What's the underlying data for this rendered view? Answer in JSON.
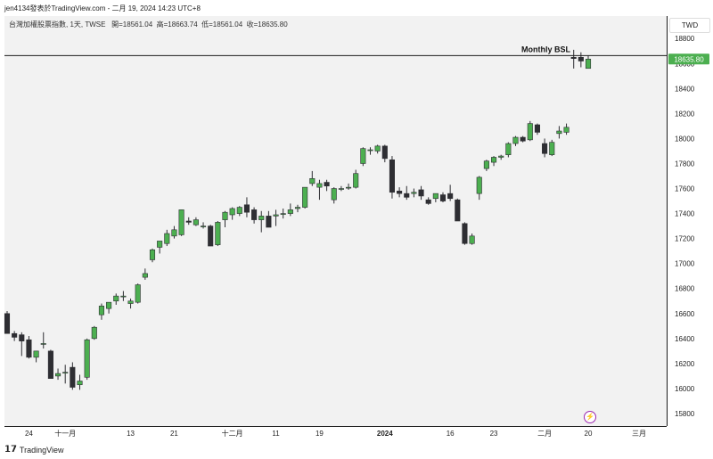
{
  "header": {
    "title": "jen4134發表於TradingView.com - 二月 19, 2024 14:23 UTC+8"
  },
  "ohlc": {
    "symbol_text": "台灣加權股票指數, 1天, TWSE",
    "open_label": "開=",
    "open": "18561.04",
    "high_label": "高=",
    "high": "18663.74",
    "low_label": "低=",
    "low": "18561.04",
    "close_label": "收=",
    "close": "18635.80"
  },
  "currency": "TWD",
  "footer": {
    "logo_icon": "tradingview-logo-icon",
    "brand": "TradingView"
  },
  "annotation": {
    "label": "Monthly BSL",
    "price": 18664
  },
  "last_price_label": "18635.80",
  "colors": {
    "up": "#4caf50",
    "down": "#2e2e33",
    "line": "#1c1c1c",
    "last_price_bg": "#4caf50",
    "shadow_grey": "#c8c8c8"
  },
  "chart_data": {
    "type": "candlestick",
    "ylim": [
      15700,
      18980
    ],
    "yticks": [
      15800,
      16000,
      16200,
      16400,
      16600,
      16800,
      17000,
      17200,
      17400,
      17600,
      17800,
      18000,
      18200,
      18400,
      18600,
      18800
    ],
    "x_tick_labels": [
      {
        "label": "24",
        "index": 3
      },
      {
        "label": "十一月",
        "index": 8
      },
      {
        "label": "13",
        "index": 17
      },
      {
        "label": "21",
        "index": 23
      },
      {
        "label": "十二月",
        "index": 31
      },
      {
        "label": "11",
        "index": 37
      },
      {
        "label": "19",
        "index": 43
      },
      {
        "label": "2024",
        "index": 52
      },
      {
        "label": "16",
        "index": 61
      },
      {
        "label": "23",
        "index": 67
      },
      {
        "label": "二月",
        "index": 74
      },
      {
        "label": "20",
        "index": 80
      },
      {
        "label": "三月",
        "index": 87
      }
    ],
    "candles": [
      {
        "o": 16600,
        "h": 16620,
        "l": 16440,
        "c": 16440
      },
      {
        "o": 16440,
        "h": 16460,
        "l": 16380,
        "c": 16410
      },
      {
        "o": 16430,
        "h": 16450,
        "l": 16260,
        "c": 16380
      },
      {
        "o": 16390,
        "h": 16420,
        "l": 16240,
        "c": 16250
      },
      {
        "o": 16250,
        "h": 16300,
        "l": 16210,
        "c": 16300
      },
      {
        "o": 16360,
        "h": 16450,
        "l": 16320,
        "c": 16360
      },
      {
        "o": 16300,
        "h": 16310,
        "l": 16080,
        "c": 16080
      },
      {
        "o": 16100,
        "h": 16160,
        "l": 16070,
        "c": 16120
      },
      {
        "o": 16130,
        "h": 16190,
        "l": 16040,
        "c": 16130
      },
      {
        "o": 16170,
        "h": 16210,
        "l": 15990,
        "c": 16010
      },
      {
        "o": 16030,
        "h": 16110,
        "l": 15990,
        "c": 16060
      },
      {
        "o": 16090,
        "h": 16400,
        "l": 16070,
        "c": 16390
      },
      {
        "o": 16400,
        "h": 16500,
        "l": 16390,
        "c": 16490
      },
      {
        "o": 16590,
        "h": 16680,
        "l": 16550,
        "c": 16660
      },
      {
        "o": 16640,
        "h": 16690,
        "l": 16600,
        "c": 16690
      },
      {
        "o": 16700,
        "h": 16760,
        "l": 16670,
        "c": 16740
      },
      {
        "o": 16740,
        "h": 16780,
        "l": 16700,
        "c": 16740
      },
      {
        "o": 16680,
        "h": 16720,
        "l": 16640,
        "c": 16700
      },
      {
        "o": 16690,
        "h": 16840,
        "l": 16680,
        "c": 16830
      },
      {
        "o": 16890,
        "h": 16960,
        "l": 16870,
        "c": 16920
      },
      {
        "o": 17030,
        "h": 17120,
        "l": 17010,
        "c": 17110
      },
      {
        "o": 17130,
        "h": 17180,
        "l": 17080,
        "c": 17180
      },
      {
        "o": 17160,
        "h": 17270,
        "l": 17140,
        "c": 17240
      },
      {
        "o": 17220,
        "h": 17300,
        "l": 17200,
        "c": 17270
      },
      {
        "o": 17230,
        "h": 17430,
        "l": 17220,
        "c": 17430
      },
      {
        "o": 17340,
        "h": 17370,
        "l": 17310,
        "c": 17330
      },
      {
        "o": 17310,
        "h": 17370,
        "l": 17300,
        "c": 17350
      },
      {
        "o": 17300,
        "h": 17330,
        "l": 17280,
        "c": 17300
      },
      {
        "o": 17300,
        "h": 17310,
        "l": 17140,
        "c": 17140
      },
      {
        "o": 17150,
        "h": 17340,
        "l": 17140,
        "c": 17330
      },
      {
        "o": 17350,
        "h": 17420,
        "l": 17290,
        "c": 17410
      },
      {
        "o": 17390,
        "h": 17450,
        "l": 17350,
        "c": 17440
      },
      {
        "o": 17400,
        "h": 17460,
        "l": 17380,
        "c": 17450
      },
      {
        "o": 17470,
        "h": 17530,
        "l": 17370,
        "c": 17410
      },
      {
        "o": 17430,
        "h": 17450,
        "l": 17320,
        "c": 17350
      },
      {
        "o": 17350,
        "h": 17420,
        "l": 17250,
        "c": 17380
      },
      {
        "o": 17380,
        "h": 17420,
        "l": 17300,
        "c": 17290
      },
      {
        "o": 17380,
        "h": 17430,
        "l": 17300,
        "c": 17390
      },
      {
        "o": 17400,
        "h": 17440,
        "l": 17360,
        "c": 17400
      },
      {
        "o": 17400,
        "h": 17480,
        "l": 17380,
        "c": 17430
      },
      {
        "o": 17440,
        "h": 17470,
        "l": 17410,
        "c": 17450
      },
      {
        "o": 17450,
        "h": 17610,
        "l": 17440,
        "c": 17610
      },
      {
        "o": 17640,
        "h": 17740,
        "l": 17620,
        "c": 17680
      },
      {
        "o": 17610,
        "h": 17670,
        "l": 17510,
        "c": 17640
      },
      {
        "o": 17650,
        "h": 17670,
        "l": 17580,
        "c": 17620
      },
      {
        "o": 17510,
        "h": 17610,
        "l": 17480,
        "c": 17600
      },
      {
        "o": 17600,
        "h": 17620,
        "l": 17580,
        "c": 17600
      },
      {
        "o": 17610,
        "h": 17640,
        "l": 17590,
        "c": 17610
      },
      {
        "o": 17610,
        "h": 17750,
        "l": 17600,
        "c": 17720
      },
      {
        "o": 17800,
        "h": 17930,
        "l": 17780,
        "c": 17920
      },
      {
        "o": 17910,
        "h": 17930,
        "l": 17870,
        "c": 17910
      },
      {
        "o": 17900,
        "h": 17950,
        "l": 17880,
        "c": 17940
      },
      {
        "o": 17940,
        "h": 17950,
        "l": 17810,
        "c": 17840
      },
      {
        "o": 17830,
        "h": 17860,
        "l": 17520,
        "c": 17570
      },
      {
        "o": 17580,
        "h": 17610,
        "l": 17530,
        "c": 17560
      },
      {
        "o": 17560,
        "h": 17620,
        "l": 17510,
        "c": 17530
      },
      {
        "o": 17560,
        "h": 17600,
        "l": 17530,
        "c": 17570
      },
      {
        "o": 17590,
        "h": 17620,
        "l": 17510,
        "c": 17540
      },
      {
        "o": 17510,
        "h": 17530,
        "l": 17470,
        "c": 17480
      },
      {
        "o": 17520,
        "h": 17560,
        "l": 17490,
        "c": 17560
      },
      {
        "o": 17550,
        "h": 17570,
        "l": 17490,
        "c": 17500
      },
      {
        "o": 17560,
        "h": 17630,
        "l": 17500,
        "c": 17520
      },
      {
        "o": 17510,
        "h": 17520,
        "l": 17340,
        "c": 17340
      },
      {
        "o": 17320,
        "h": 17330,
        "l": 17150,
        "c": 17160
      },
      {
        "o": 17160,
        "h": 17240,
        "l": 17150,
        "c": 17220
      },
      {
        "o": 17560,
        "h": 17700,
        "l": 17510,
        "c": 17690
      },
      {
        "o": 17760,
        "h": 17830,
        "l": 17740,
        "c": 17820
      },
      {
        "o": 17810,
        "h": 17860,
        "l": 17780,
        "c": 17850
      },
      {
        "o": 17850,
        "h": 17870,
        "l": 17830,
        "c": 17860
      },
      {
        "o": 17870,
        "h": 17970,
        "l": 17850,
        "c": 17960
      },
      {
        "o": 17960,
        "h": 18020,
        "l": 17940,
        "c": 18010
      },
      {
        "o": 18010,
        "h": 18020,
        "l": 17970,
        "c": 17980
      },
      {
        "o": 17990,
        "h": 18140,
        "l": 17980,
        "c": 18120
      },
      {
        "o": 18110,
        "h": 18120,
        "l": 18030,
        "c": 18050
      },
      {
        "o": 17960,
        "h": 18000,
        "l": 17850,
        "c": 17880
      },
      {
        "o": 17870,
        "h": 17990,
        "l": 17860,
        "c": 17970
      },
      {
        "o": 18040,
        "h": 18100,
        "l": 18000,
        "c": 18060
      },
      {
        "o": 18050,
        "h": 18120,
        "l": 18030,
        "c": 18090
      },
      {
        "o": 18650,
        "h": 18710,
        "l": 18560,
        "c": 18640
      },
      {
        "o": 18650,
        "h": 18690,
        "l": 18570,
        "c": 18620
      },
      {
        "o": 18561.04,
        "h": 18663.74,
        "l": 18561.04,
        "c": 18635.8
      }
    ]
  }
}
